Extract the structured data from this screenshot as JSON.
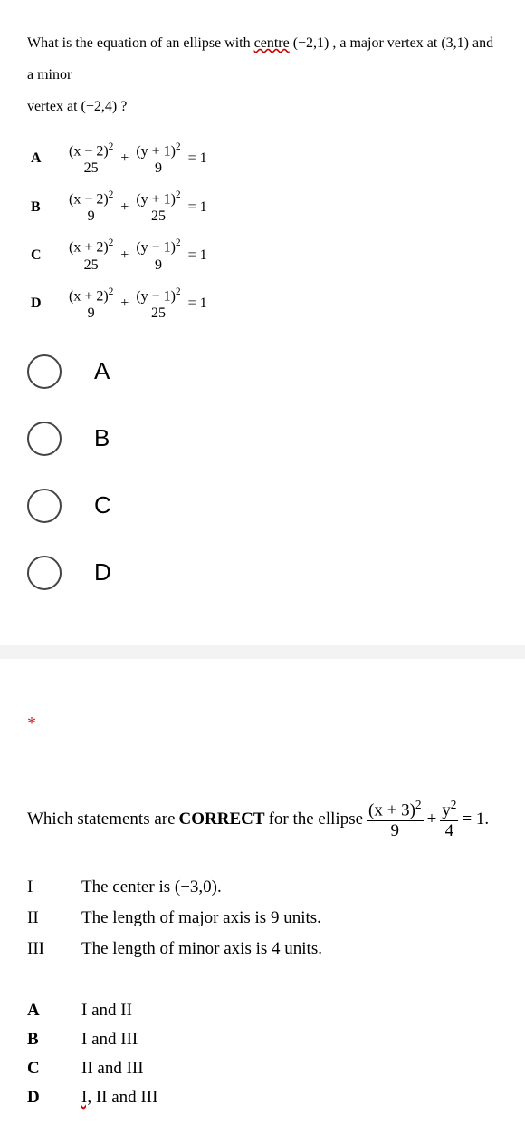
{
  "q1": {
    "text_parts": {
      "p1": "What is the equation of an ellipse with ",
      "centre_word": "centre",
      "p2": " (−2,1) ,  a major vertex at (3,1)  and a minor",
      "p3": "vertex at (−2,4) ?"
    },
    "answers": [
      {
        "label": "A",
        "num1": "(x − 2)",
        "den1": "25",
        "num2": "(y + 1)",
        "den2": "9"
      },
      {
        "label": "B",
        "num1": "(x − 2)",
        "den1": "9",
        "num2": "(y + 1)",
        "den2": "25"
      },
      {
        "label": "C",
        "num1": "(x + 2)",
        "den1": "25",
        "num2": "(y − 1)",
        "den2": "9"
      },
      {
        "label": "D",
        "num1": "(x + 2)",
        "den1": "9",
        "num2": "(y − 1)",
        "den2": "25"
      }
    ],
    "radios": [
      "A",
      "B",
      "C",
      "D"
    ]
  },
  "q2": {
    "required_mark": "*",
    "prefix": "Which statements are ",
    "bold": "CORRECT",
    "mid": " for the ellipse ",
    "frac1_num": "(x + 3)",
    "frac1_den": "9",
    "frac2_num": "y",
    "frac2_den": "4",
    "tail": " = 1.",
    "statements": [
      {
        "label": "I",
        "text": "The center is (−3,0)."
      },
      {
        "label": "II",
        "text": "The length of major axis is 9 units."
      },
      {
        "label": "III",
        "text": "The length of minor axis is 4 units."
      }
    ],
    "options": [
      {
        "label": "A",
        "text": "I and II",
        "wavy": false
      },
      {
        "label": "B",
        "text": "I and III",
        "wavy": false
      },
      {
        "label": "C",
        "text": "II and III",
        "wavy": false
      },
      {
        "label": "D",
        "text": "I,",
        "rest": " II and III",
        "wavy": true
      }
    ]
  },
  "misc": {
    "plus": "+",
    "eq1": "= 1",
    "sq": "2"
  }
}
